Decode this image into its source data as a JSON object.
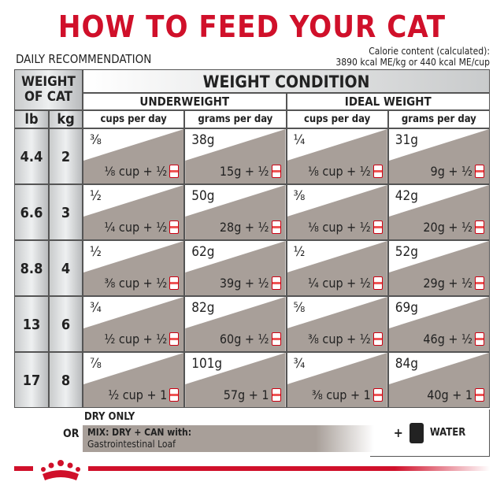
{
  "header": {
    "title": "HOW TO FEED YOUR CAT",
    "subtitle": "DAILY RECOMMENDATION",
    "calorie_line1": "Calorie content (calculated):",
    "calorie_line2": "3890 kcal ME/kg or 440 kcal ME/cup"
  },
  "table": {
    "weight_header": "WEIGHT OF CAT",
    "lb_header": "lb",
    "kg_header": "kg",
    "condition_header": "WEIGHT CONDITION",
    "groups": [
      "UNDERWEIGHT",
      "IDEAL WEIGHT"
    ],
    "subheaders": [
      "cups per day",
      "grams per day",
      "cups per day",
      "grams per day"
    ],
    "rows": [
      {
        "lb": 4.4,
        "kg": 2,
        "cells": [
          [
            "⅜",
            "⅛ cup + ½"
          ],
          [
            "38g",
            "15g + ½"
          ],
          [
            "¼",
            "⅛ cup + ½"
          ],
          [
            "31g",
            "9g + ½"
          ]
        ]
      },
      {
        "lb": 6.6,
        "kg": 3,
        "cells": [
          [
            "½",
            "¼ cup + ½"
          ],
          [
            "50g",
            "28g + ½"
          ],
          [
            "⅜",
            "⅛ cup + ½"
          ],
          [
            "42g",
            "20g + ½"
          ]
        ]
      },
      {
        "lb": 8.8,
        "kg": 4,
        "cells": [
          [
            "½",
            "⅜ cup + ½"
          ],
          [
            "62g",
            "39g + ½"
          ],
          [
            "½",
            "¼ cup + ½"
          ],
          [
            "52g",
            "29g + ½"
          ]
        ]
      },
      {
        "lb": 13,
        "kg": 6,
        "cells": [
          [
            "¾",
            "½ cup + ½"
          ],
          [
            "82g",
            "60g + ½"
          ],
          [
            "⅝",
            "⅜ cup + ½"
          ],
          [
            "69g",
            "46g + ½"
          ]
        ]
      },
      {
        "lb": 17,
        "kg": 8,
        "cells": [
          [
            "⅞",
            "½ cup + 1"
          ],
          [
            "101g",
            "57g + 1"
          ],
          [
            "¾",
            "⅜ cup + 1"
          ],
          [
            "84g",
            "40g + 1"
          ]
        ]
      }
    ]
  },
  "legend": {
    "dry": "DRY ONLY",
    "or": "OR",
    "mix": "MIX: DRY + CAN with:",
    "product": "Gastrointestinal Loaf",
    "plus": "+",
    "water": "WATER"
  }
}
